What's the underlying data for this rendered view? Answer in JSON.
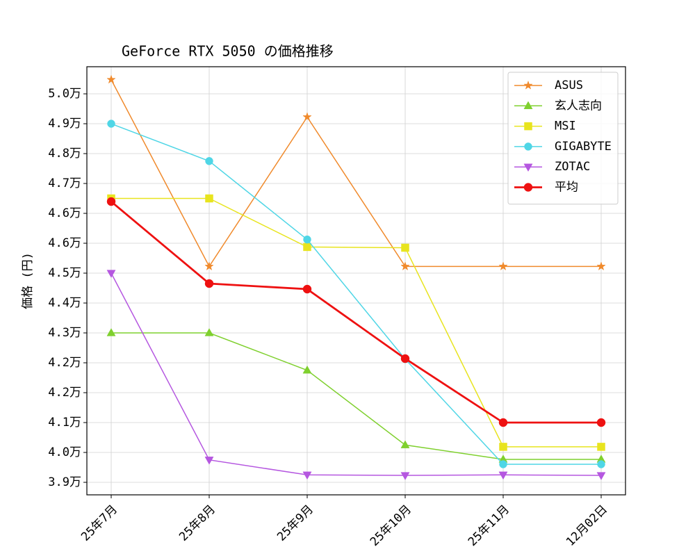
{
  "chart_data": {
    "type": "line",
    "title": "GeForce RTX 5050 の価格推移",
    "y_label": "価格 (円)",
    "categories": [
      "25年7月",
      "25年8月",
      "25年9月",
      "25年10月",
      "25年11月",
      "12月02日"
    ],
    "series": [
      {
        "name": "ASUS",
        "color": "#f08a2c",
        "marker": "star",
        "values": [
          49980,
          44980,
          48980,
          44980,
          44980,
          44980
        ]
      },
      {
        "name": "玄人志向",
        "color": "#7fd02e",
        "marker": "triangle-up",
        "values": [
          43200,
          43200,
          42200,
          40200,
          39814,
          39814
        ]
      },
      {
        "name": "MSI",
        "color": "#e8e41e",
        "marker": "square",
        "values": [
          46800,
          46800,
          45500,
          45480,
          40150,
          40150
        ]
      },
      {
        "name": "GIGABYTE",
        "color": "#4fd6e6",
        "marker": "circle",
        "values": [
          48800,
          47800,
          45700,
          42500,
          39684,
          39684
        ]
      },
      {
        "name": "ZOTAC",
        "color": "#b557e0",
        "marker": "triangle-down",
        "values": [
          44800,
          39800,
          39400,
          39386,
          39400,
          39386
        ]
      },
      {
        "name": "平均",
        "color": "#ee1111",
        "marker": "circle",
        "linewidth": 2.8,
        "values": [
          46716,
          44521,
          44372,
          42512,
          40800,
          40800
        ]
      }
    ],
    "ylim": [
      38865,
      50326
    ],
    "yticks": [
      {
        "value": 39200,
        "label": "3.9万"
      },
      {
        "value": 40000,
        "label": "4.0万"
      },
      {
        "value": 40800,
        "label": "4.1万"
      },
      {
        "value": 41600,
        "label": "4.2万"
      },
      {
        "value": 42400,
        "label": "4.2万"
      },
      {
        "value": 43200,
        "label": "4.3万"
      },
      {
        "value": 44000,
        "label": "4.4万"
      },
      {
        "value": 44800,
        "label": "4.5万"
      },
      {
        "value": 45600,
        "label": "4.6万"
      },
      {
        "value": 46400,
        "label": "4.6万"
      },
      {
        "value": 47200,
        "label": "4.7万"
      },
      {
        "value": 48000,
        "label": "4.8万"
      },
      {
        "value": 48800,
        "label": "4.9万"
      },
      {
        "value": 49600,
        "label": "5.0万"
      }
    ],
    "grid": true,
    "legend": "upper right"
  }
}
